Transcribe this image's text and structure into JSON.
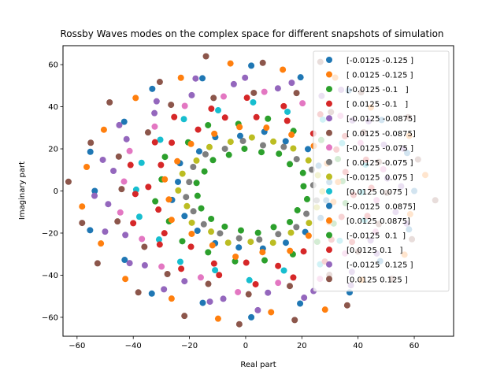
{
  "chart_data": {
    "type": "scatter",
    "title": "Rossby Waves modes on the complex space for different snapshots of simulation",
    "xlabel": "Real part",
    "ylabel": "Imaginary part",
    "xlim": [
      -65,
      74
    ],
    "ylim": [
      -69,
      69
    ],
    "xticks": [
      -60,
      -40,
      -20,
      0,
      20,
      40,
      60
    ],
    "yticks": [
      -60,
      -40,
      -20,
      0,
      20,
      40,
      60
    ],
    "grid": false,
    "legend_position": "upper-right",
    "series": [
      {
        "name": "[-0.0125 -0.125 ]",
        "color": "#1f77b4",
        "radius": 58.0,
        "phase": 0.0
      },
      {
        "name": "[ 0.0125 -0.125 ]",
        "color": "#ff7f0e",
        "radius": 60.0,
        "phase": 0.21
      },
      {
        "name": "[-0.0125 -0.1   ]",
        "color": "#2ca02c",
        "radius": 33.5,
        "phase": 0.1
      },
      {
        "name": "[ 0.0125 -0.1   ]",
        "color": "#d62728",
        "radius": 35.5,
        "phase": 0.3
      },
      {
        "name": "[-0.0125 -0.0875]",
        "color": "#9467bd",
        "radius": 55.5,
        "phase": 0.42
      },
      {
        "name": "[ 0.0125 -0.0875]",
        "color": "#8c564b",
        "radius": 48.0,
        "phase": 0.05
      },
      {
        "name": "[-0.0125 -0.075 ]",
        "color": "#e377c2",
        "radius": 46.5,
        "phase": 0.62
      },
      {
        "name": "[ 0.0125 -0.075 ]",
        "color": "#7f7f7f",
        "radius": 23.0,
        "phase": 0.15
      },
      {
        "name": "[-0.0125  0.075 ]",
        "color": "#bcbd22",
        "radius": 25.0,
        "phase": 0.55
      },
      {
        "name": "[0.0125 0.075 ]",
        "color": "#17becf",
        "radius": 41.0,
        "phase": 0.35
      },
      {
        "name": "[-0.0125  0.0875]",
        "color": "#1f77b4",
        "radius": 27.5,
        "phase": 0.7
      },
      {
        "name": "[0.0125 0.0875]",
        "color": "#ff7f0e",
        "radius": 30.5,
        "phase": 0.48
      },
      {
        "name": "[-0.0125  0.1  ]",
        "color": "#2ca02c",
        "radius": 19.5,
        "phase": 0.25
      },
      {
        "name": "[0.0125 0.1   ]",
        "color": "#d62728",
        "radius": 43.0,
        "phase": 0.8
      },
      {
        "name": "[-0.0125  0.125 ]",
        "color": "#9467bd",
        "radius": 50.5,
        "phase": 0.9
      },
      {
        "name": "[0.0125 0.125 ]",
        "color": "#8c564b",
        "radius": 63.5,
        "phase": 0.12
      }
    ],
    "points_per_series": 20
  }
}
